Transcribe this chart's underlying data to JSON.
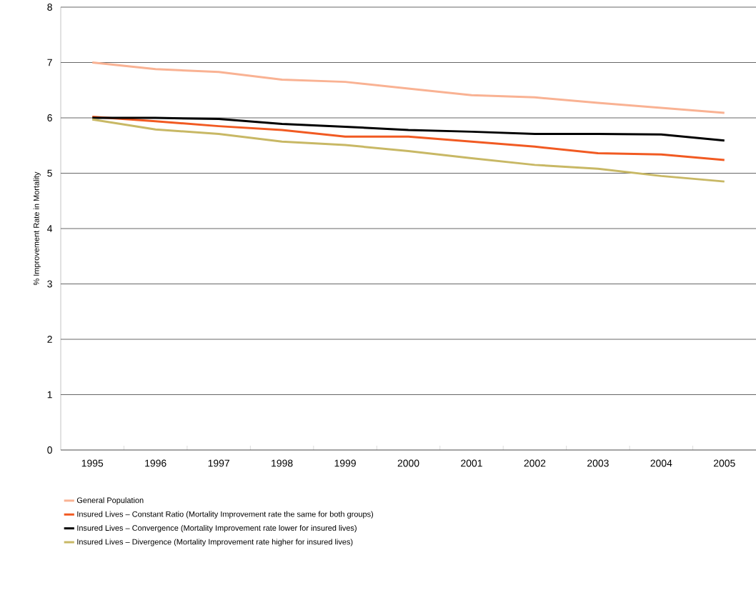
{
  "chart_data": {
    "type": "line",
    "ylabel": "% Improvement Rate in Mortality",
    "categories": [
      "1995",
      "1996",
      "1997",
      "1998",
      "1999",
      "2000",
      "2001",
      "2002",
      "2003",
      "2004",
      "2005"
    ],
    "series": [
      {
        "name": "General Population",
        "color": "#f9b293",
        "values": [
          7.0,
          6.88,
          6.83,
          6.69,
          6.65,
          6.53,
          6.41,
          6.37,
          6.27,
          6.18,
          6.09
        ]
      },
      {
        "name": "Insured Lives – Constant Ratio (Mortality Improvement rate the same for both groups)",
        "color": "#f15a22",
        "values": [
          6.02,
          5.94,
          5.85,
          5.78,
          5.66,
          5.66,
          5.57,
          5.48,
          5.36,
          5.34,
          5.24
        ]
      },
      {
        "name": "Insured Lives – Convergence (Mortality Improvement rate lower for insured lives)",
        "color": "#000000",
        "values": [
          6.0,
          6.0,
          5.98,
          5.89,
          5.84,
          5.78,
          5.75,
          5.71,
          5.71,
          5.7,
          5.59
        ]
      },
      {
        "name": "Insured Lives – Divergence (Mortality Improvement rate higher for insured lives)",
        "color": "#c8b865",
        "values": [
          5.97,
          5.79,
          5.71,
          5.57,
          5.51,
          5.4,
          5.27,
          5.15,
          5.08,
          4.95,
          4.85
        ]
      }
    ],
    "ylim": [
      0,
      8
    ],
    "yticks": [
      0,
      1,
      2,
      3,
      4,
      5,
      6,
      7,
      8
    ],
    "grid": "y",
    "legend": "bottom",
    "marker": "none",
    "line_style": "solid"
  }
}
